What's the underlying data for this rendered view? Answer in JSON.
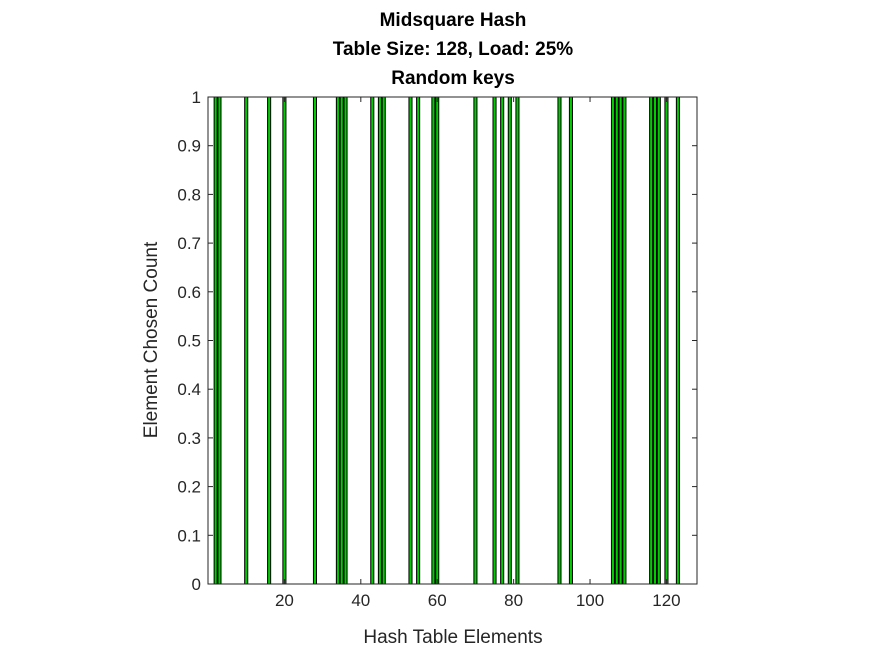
{
  "chart_data": {
    "type": "bar",
    "title_lines": [
      "Midsquare Hash",
      "Table Size: 128, Load: 25%",
      "Random keys"
    ],
    "xlabel": "Hash Table Elements",
    "ylabel": "Element Chosen Count",
    "xlim": [
      0,
      128
    ],
    "ylim": [
      0,
      1
    ],
    "xticks": [
      20,
      40,
      60,
      80,
      100,
      120
    ],
    "yticks": [
      0,
      0.1,
      0.2,
      0.3,
      0.4,
      0.5,
      0.6,
      0.7,
      0.8,
      0.9,
      1
    ],
    "ytick_labels": [
      "0",
      "0.1",
      "0.2",
      "0.3",
      "0.4",
      "0.5",
      "0.6",
      "0.7",
      "0.8",
      "0.9",
      "1"
    ],
    "bar_color": "#00cc00",
    "bar_edge_color": "#000000",
    "categories": [
      2,
      3,
      10,
      16,
      20,
      28,
      34,
      35,
      36,
      43,
      45,
      46,
      53,
      55,
      59,
      60,
      70,
      75,
      77,
      79,
      81,
      92,
      95,
      106,
      107,
      108,
      109,
      116,
      117,
      118,
      120,
      123
    ],
    "values": [
      1,
      1,
      1,
      1,
      1,
      1,
      1,
      1,
      1,
      1,
      1,
      1,
      1,
      1,
      1,
      1,
      1,
      1,
      1,
      1,
      1,
      1,
      1,
      1,
      1,
      1,
      1,
      1,
      1,
      1,
      1,
      1
    ],
    "grid": false
  }
}
